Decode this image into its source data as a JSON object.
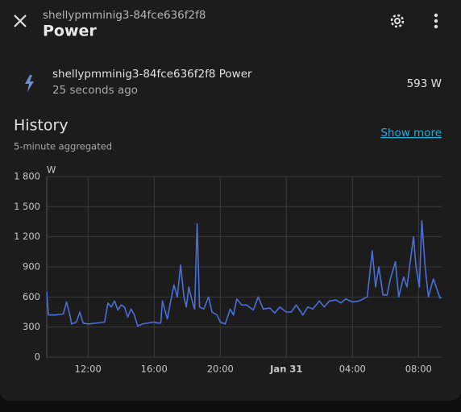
{
  "header": {
    "subtitle": "shellypmminig3-84fce636f2f8",
    "title": "Power"
  },
  "entity": {
    "name": "shellypmminig3-84fce636f2f8 Power",
    "last_changed": "25 seconds ago",
    "state": "593 W"
  },
  "history": {
    "title": "History",
    "subtitle": "5-minute aggregated",
    "link": "Show more"
  },
  "chart_data": {
    "type": "line",
    "y_unit": "W",
    "color": "#4a6fd6",
    "grid": true,
    "xlim": [
      9.5,
      33.4
    ],
    "xticks": [
      {
        "value": 12,
        "label": "12:00"
      },
      {
        "value": 16,
        "label": "16:00"
      },
      {
        "value": 20,
        "label": "20:00"
      },
      {
        "value": 24,
        "label": "Jan 31"
      },
      {
        "value": 28,
        "label": "04:00"
      },
      {
        "value": 32,
        "label": "08:00"
      }
    ],
    "ylim": [
      0,
      1800
    ],
    "yticks": [
      0,
      300,
      600,
      900,
      {
        "value": 1200,
        "label": "1 200"
      },
      {
        "value": 1500,
        "label": "1 500"
      },
      {
        "value": 1800,
        "label": "1 800"
      }
    ],
    "x": [
      9.5,
      9.6,
      10,
      10.5,
      10.7,
      10.9,
      11,
      11.3,
      11.5,
      11.7,
      12,
      12.5,
      13,
      13.2,
      13.4,
      13.6,
      13.8,
      14,
      14.2,
      14.4,
      14.6,
      14.8,
      15,
      15.3,
      15.6,
      16,
      16.2,
      16.4,
      16.5,
      16.8,
      17,
      17.2,
      17.4,
      17.6,
      17.8,
      17.95,
      18.1,
      18.3,
      18.45,
      18.6,
      18.75,
      19,
      19.3,
      19.5,
      19.8,
      20,
      20.3,
      20.6,
      20.8,
      21,
      21.3,
      21.6,
      22,
      22.3,
      22.6,
      23,
      23.3,
      23.6,
      24,
      24.3,
      24.6,
      25,
      25.3,
      25.6,
      26,
      26.3,
      26.6,
      27,
      27.3,
      27.6,
      28,
      28.4,
      28.9,
      29.2,
      29.4,
      29.6,
      29.85,
      30.1,
      30.3,
      30.6,
      30.8,
      31.1,
      31.3,
      31.7,
      31.85,
      32.05,
      32.2,
      32.4,
      32.6,
      32.9,
      33.3,
      33.4
    ],
    "values": [
      650,
      420,
      420,
      430,
      550,
      420,
      330,
      350,
      450,
      340,
      330,
      340,
      350,
      540,
      500,
      560,
      470,
      520,
      500,
      400,
      480,
      420,
      310,
      330,
      340,
      350,
      340,
      340,
      560,
      380,
      560,
      720,
      600,
      920,
      600,
      500,
      700,
      560,
      480,
      1330,
      500,
      480,
      600,
      450,
      420,
      350,
      330,
      480,
      420,
      580,
      520,
      520,
      470,
      600,
      480,
      490,
      440,
      500,
      450,
      450,
      520,
      420,
      500,
      480,
      560,
      500,
      560,
      570,
      540,
      580,
      550,
      560,
      600,
      1060,
      700,
      900,
      620,
      620,
      780,
      950,
      600,
      800,
      700,
      1200,
      900,
      700,
      1360,
      900,
      600,
      780,
      590,
      600
    ]
  }
}
